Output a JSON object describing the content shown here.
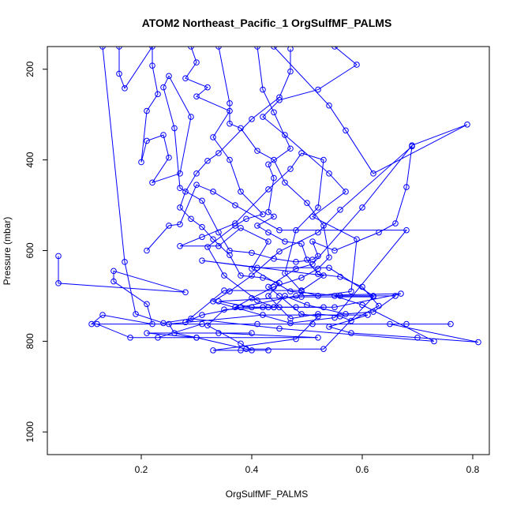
{
  "chart_data": {
    "type": "line",
    "title": "ATOM2 Northeast_Pacific_1 OrgSulfMF_PALMS",
    "xlabel": "OrgSulfMF_PALMS",
    "ylabel": "Pressure (mbar)",
    "xlim": [
      0.03,
      0.83
    ],
    "ylim": [
      1050,
      150
    ],
    "y_reversed": true,
    "xticks": [
      0.2,
      0.4,
      0.6,
      0.8
    ],
    "xtick_labels": [
      "0.2",
      "0.4",
      "0.6",
      "0.8"
    ],
    "yticks": [
      200,
      400,
      600,
      800,
      1000
    ],
    "ytick_labels": [
      "200",
      "400",
      "600",
      "800",
      "1000"
    ],
    "grid": false,
    "legend": "none",
    "series": [
      {
        "color": "#0000ff",
        "marker": "open-circle",
        "points": [
          [
            0.05,
            612
          ],
          [
            0.05,
            672
          ],
          [
            0.28,
            692
          ],
          [
            0.15,
            645
          ],
          [
            0.15,
            668
          ],
          [
            0.21,
            718
          ],
          [
            0.22,
            762
          ],
          [
            0.13,
            742
          ],
          [
            0.11,
            762
          ],
          [
            0.76,
            762
          ],
          [
            0.68,
            762
          ],
          [
            0.12,
            762
          ],
          [
            0.18,
            792
          ],
          [
            0.3,
            792
          ],
          [
            0.21,
            782
          ],
          [
            0.4,
            782
          ],
          [
            0.34,
            782
          ],
          [
            0.52,
            792
          ],
          [
            0.23,
            792
          ],
          [
            0.31,
            762
          ],
          [
            0.41,
            762
          ],
          [
            0.51,
            762
          ],
          [
            0.65,
            762
          ],
          [
            0.81,
            802
          ],
          [
            0.7,
            792
          ],
          [
            0.58,
            782
          ],
          [
            0.54,
            768
          ],
          [
            0.61,
            742
          ],
          [
            0.42,
            742
          ],
          [
            0.25,
            762
          ],
          [
            0.26,
            782
          ],
          [
            0.3,
            792
          ],
          [
            0.39,
            817
          ],
          [
            0.53,
            817
          ],
          [
            0.62,
            702
          ],
          [
            0.49,
            702
          ],
          [
            0.34,
            712
          ],
          [
            0.4,
            725
          ],
          [
            0.55,
            725
          ],
          [
            0.67,
            695
          ],
          [
            0.48,
            700
          ],
          [
            0.38,
            725
          ],
          [
            0.31,
            742
          ],
          [
            0.28,
            758
          ],
          [
            0.35,
            688
          ],
          [
            0.49,
            688
          ],
          [
            0.53,
            655
          ],
          [
            0.31,
            622
          ],
          [
            0.41,
            638
          ],
          [
            0.54,
            638
          ],
          [
            0.62,
            700
          ],
          [
            0.55,
            700
          ],
          [
            0.6,
            720
          ],
          [
            0.73,
            800
          ],
          [
            0.45,
            772
          ],
          [
            0.29,
            750
          ],
          [
            0.24,
            760
          ],
          [
            0.19,
            740
          ],
          [
            0.17,
            625
          ],
          [
            0.13,
            150
          ]
        ]
      },
      {
        "color": "#0000ff",
        "marker": "open-circle",
        "points": [
          [
            0.29,
            150
          ],
          [
            0.3,
            185
          ],
          [
            0.28,
            220
          ],
          [
            0.32,
            240
          ],
          [
            0.3,
            260
          ],
          [
            0.36,
            292
          ],
          [
            0.33,
            350
          ],
          [
            0.36,
            400
          ],
          [
            0.38,
            470
          ],
          [
            0.42,
            520
          ],
          [
            0.39,
            530
          ],
          [
            0.37,
            545
          ],
          [
            0.32,
            592
          ],
          [
            0.35,
            655
          ],
          [
            0.41,
            710
          ],
          [
            0.44,
            725
          ],
          [
            0.46,
            700
          ],
          [
            0.5,
            720
          ],
          [
            0.57,
            740
          ],
          [
            0.62,
            735
          ],
          [
            0.66,
            700
          ],
          [
            0.56,
            700
          ],
          [
            0.47,
            690
          ],
          [
            0.4,
            640
          ],
          [
            0.43,
            580
          ],
          [
            0.38,
            550
          ],
          [
            0.34,
            590
          ],
          [
            0.27,
            590
          ],
          [
            0.31,
            570
          ],
          [
            0.37,
            540
          ],
          [
            0.43,
            465
          ],
          [
            0.47,
            420
          ],
          [
            0.49,
            385
          ],
          [
            0.53,
            400
          ],
          [
            0.52,
            505
          ],
          [
            0.48,
            555
          ],
          [
            0.46,
            650
          ],
          [
            0.49,
            690
          ],
          [
            0.52,
            700
          ],
          [
            0.58,
            690
          ],
          [
            0.59,
            575
          ],
          [
            0.51,
            525
          ],
          [
            0.57,
            470
          ],
          [
            0.54,
            430
          ],
          [
            0.46,
            345
          ],
          [
            0.42,
            305
          ],
          [
            0.45,
            268
          ],
          [
            0.52,
            245
          ],
          [
            0.59,
            190
          ],
          [
            0.55,
            150
          ]
        ]
      },
      {
        "color": "#0000ff",
        "marker": "open-circle",
        "points": [
          [
            0.16,
            150
          ],
          [
            0.16,
            210
          ],
          [
            0.17,
            242
          ],
          [
            0.22,
            150
          ],
          [
            0.22,
            192
          ],
          [
            0.23,
            255
          ],
          [
            0.21,
            292
          ],
          [
            0.2,
            405
          ],
          [
            0.21,
            358
          ],
          [
            0.24,
            345
          ],
          [
            0.25,
            395
          ],
          [
            0.22,
            450
          ],
          [
            0.27,
            430
          ],
          [
            0.29,
            305
          ],
          [
            0.25,
            215
          ],
          [
            0.24,
            240
          ],
          [
            0.26,
            330
          ],
          [
            0.27,
            462
          ],
          [
            0.31,
            490
          ],
          [
            0.34,
            560
          ],
          [
            0.36,
            600
          ],
          [
            0.4,
            605
          ],
          [
            0.44,
            618
          ],
          [
            0.48,
            625
          ],
          [
            0.51,
            620
          ],
          [
            0.52,
            612
          ],
          [
            0.51,
            580
          ],
          [
            0.55,
            600
          ],
          [
            0.63,
            560
          ],
          [
            0.66,
            540
          ],
          [
            0.68,
            460
          ],
          [
            0.69,
            370
          ],
          [
            0.56,
            510
          ],
          [
            0.52,
            560
          ],
          [
            0.45,
            602
          ],
          [
            0.4,
            655
          ],
          [
            0.36,
            690
          ],
          [
            0.33,
            712
          ],
          [
            0.47,
            760
          ],
          [
            0.55,
            748
          ],
          [
            0.68,
            555
          ],
          [
            0.45,
            555
          ],
          [
            0.37,
            500
          ],
          [
            0.33,
            470
          ],
          [
            0.3,
            455
          ],
          [
            0.27,
            542
          ],
          [
            0.25,
            545
          ],
          [
            0.21,
            600
          ]
        ]
      },
      {
        "color": "#0000ff",
        "marker": "open-circle",
        "points": [
          [
            0.34,
            150
          ],
          [
            0.36,
            275
          ],
          [
            0.36,
            320
          ],
          [
            0.38,
            330
          ],
          [
            0.41,
            380
          ],
          [
            0.44,
            400
          ],
          [
            0.46,
            450
          ],
          [
            0.5,
            495
          ],
          [
            0.53,
            545
          ],
          [
            0.54,
            615
          ],
          [
            0.52,
            640
          ],
          [
            0.49,
            660
          ],
          [
            0.44,
            680
          ],
          [
            0.4,
            705
          ],
          [
            0.37,
            725
          ],
          [
            0.42,
            725
          ],
          [
            0.48,
            725
          ],
          [
            0.53,
            725
          ],
          [
            0.44,
            725
          ],
          [
            0.38,
            725
          ],
          [
            0.43,
            725
          ],
          [
            0.45,
            725
          ],
          [
            0.35,
            730
          ],
          [
            0.32,
            765
          ],
          [
            0.38,
            805
          ],
          [
            0.4,
            820
          ],
          [
            0.43,
            820
          ],
          [
            0.38,
            820
          ],
          [
            0.33,
            820
          ],
          [
            0.48,
            795
          ],
          [
            0.52,
            745
          ],
          [
            0.49,
            740
          ],
          [
            0.45,
            700
          ],
          [
            0.43,
            680
          ],
          [
            0.48,
            640
          ],
          [
            0.51,
            630
          ],
          [
            0.6,
            505
          ],
          [
            0.69,
            368
          ],
          [
            0.79,
            322
          ],
          [
            0.62,
            430
          ],
          [
            0.57,
            335
          ],
          [
            0.54,
            280
          ],
          [
            0.44,
            150
          ]
        ]
      },
      {
        "color": "#0000ff",
        "marker": "open-circle",
        "points": [
          [
            0.47,
            155
          ],
          [
            0.47,
            205
          ],
          [
            0.45,
            262
          ],
          [
            0.4,
            310
          ],
          [
            0.34,
            385
          ],
          [
            0.32,
            402
          ],
          [
            0.3,
            430
          ],
          [
            0.28,
            470
          ],
          [
            0.27,
            505
          ],
          [
            0.29,
            530
          ],
          [
            0.31,
            548
          ],
          [
            0.33,
            575
          ],
          [
            0.36,
            610
          ],
          [
            0.38,
            655
          ],
          [
            0.42,
            660
          ],
          [
            0.45,
            672
          ],
          [
            0.43,
            700
          ],
          [
            0.47,
            750
          ],
          [
            0.52,
            740
          ],
          [
            0.56,
            745
          ],
          [
            0.58,
            755
          ],
          [
            0.63,
            722
          ],
          [
            0.6,
            680
          ],
          [
            0.56,
            658
          ],
          [
            0.52,
            652
          ],
          [
            0.5,
            620
          ],
          [
            0.49,
            585
          ],
          [
            0.46,
            580
          ],
          [
            0.43,
            560
          ],
          [
            0.41,
            545
          ],
          [
            0.44,
            525
          ],
          [
            0.43,
            515
          ],
          [
            0.44,
            440
          ],
          [
            0.43,
            410
          ],
          [
            0.47,
            375
          ],
          [
            0.44,
            295
          ],
          [
            0.42,
            245
          ],
          [
            0.41,
            150
          ]
        ]
      }
    ]
  }
}
